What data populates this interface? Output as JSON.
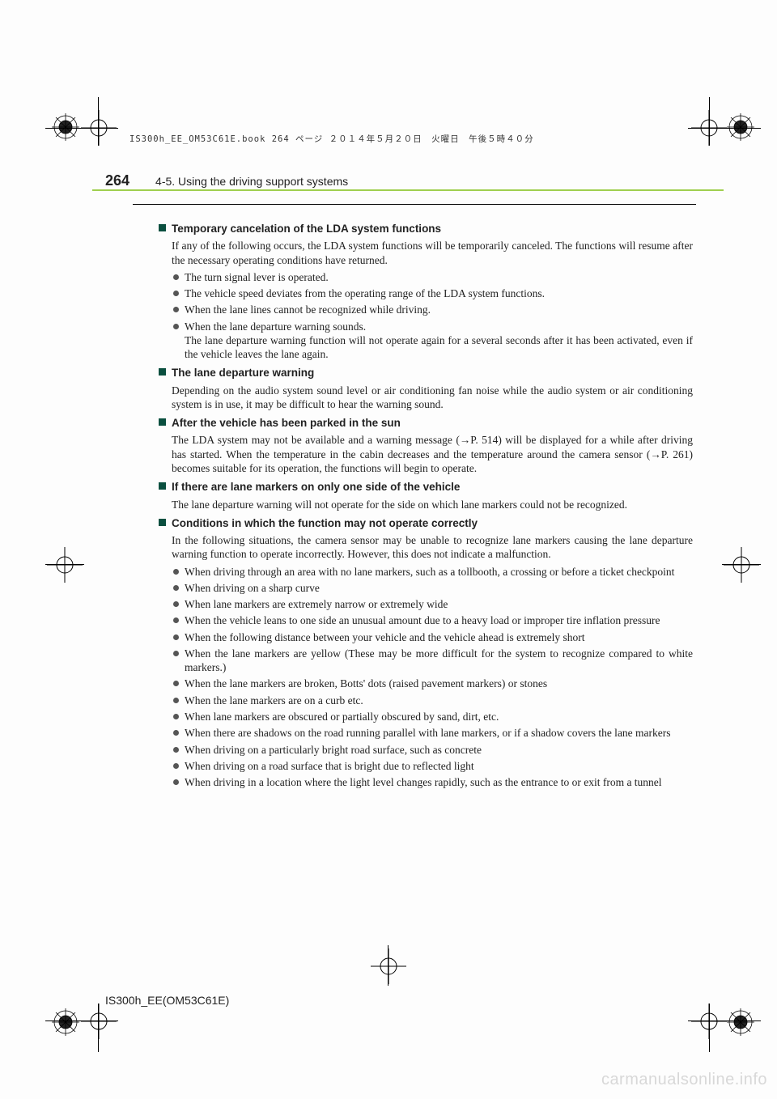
{
  "print_header": "IS300h_EE_OM53C61E.book  264 ページ  ２０１４年５月２０日　火曜日　午後５時４０分",
  "page_number": "264",
  "section_title": "4-5. Using the driving support systems",
  "footer_code": "IS300h_EE(OM53C61E)",
  "watermark": "carmanualsonline.info",
  "colors": {
    "heading_square": "#0a4f3f",
    "green_rule": "#9fcf4f",
    "bullet": "#555555",
    "text": "#222222"
  },
  "blocks": [
    {
      "heading": "Temporary cancelation of the LDA system functions",
      "paras": [
        "If any of the following occurs, the LDA system functions will be temporarily canceled. The functions will resume after the necessary operating conditions have returned."
      ],
      "bullets": [
        {
          "text": "The turn signal lever is operated."
        },
        {
          "text": "The vehicle speed deviates from the operating range of the LDA system functions."
        },
        {
          "text": "When the lane lines cannot be recognized while driving."
        },
        {
          "text": "When the lane departure warning sounds.",
          "sub": "The lane departure warning function will not operate again for a several seconds after it has been activated, even if the vehicle leaves the lane again."
        }
      ]
    },
    {
      "heading": "The lane departure warning",
      "paras": [
        "Depending on the audio system sound level or air conditioning fan noise while the audio system or air conditioning system is in use, it may be difficult to hear the warning sound."
      ],
      "bullets": []
    },
    {
      "heading": "After the vehicle has been parked in the sun",
      "paras": [
        "The LDA system may not be available and a warning message (→P. 514) will be displayed for a while after driving has started. When the temperature in the cabin decreases and the temperature around the camera sensor (→P. 261) becomes suitable for its operation, the functions will begin to operate."
      ],
      "bullets": []
    },
    {
      "heading": "If there are lane markers on only one side of the vehicle",
      "paras": [
        "The lane departure warning will not operate for the side on which lane markers could not be recognized."
      ],
      "bullets": []
    },
    {
      "heading": "Conditions in which the function may not operate correctly",
      "paras": [
        "In the following situations, the camera sensor may be unable to recognize lane markers causing the lane departure warning function to operate incorrectly. However, this does not indicate a malfunction."
      ],
      "bullets": [
        {
          "text": "When driving through an area with no lane markers, such as a tollbooth, a crossing or before a ticket checkpoint"
        },
        {
          "text": "When driving on a sharp curve"
        },
        {
          "text": "When lane markers are extremely narrow or extremely wide"
        },
        {
          "text": "When the vehicle leans to one side an unusual amount due to a heavy load or improper tire inflation pressure"
        },
        {
          "text": "When the following distance between your vehicle and the vehicle ahead is extremely short"
        },
        {
          "text": "When the lane markers are yellow (These may be more difficult for the system to recognize compared to white markers.)"
        },
        {
          "text": "When the lane markers are broken, Botts' dots (raised pavement markers) or stones"
        },
        {
          "text": "When the lane markers are on a curb etc."
        },
        {
          "text": "When lane markers are obscured or partially obscured by sand, dirt, etc."
        },
        {
          "text": "When there are shadows on the road running parallel with lane markers, or if a shadow covers the lane markers"
        },
        {
          "text": "When driving on a particularly bright road surface, such as concrete"
        },
        {
          "text": "When driving on a road surface that is bright due to reflected light"
        },
        {
          "text": "When driving in a location where the light level changes rapidly, such as the entrance to or exit from a tunnel"
        }
      ]
    }
  ]
}
